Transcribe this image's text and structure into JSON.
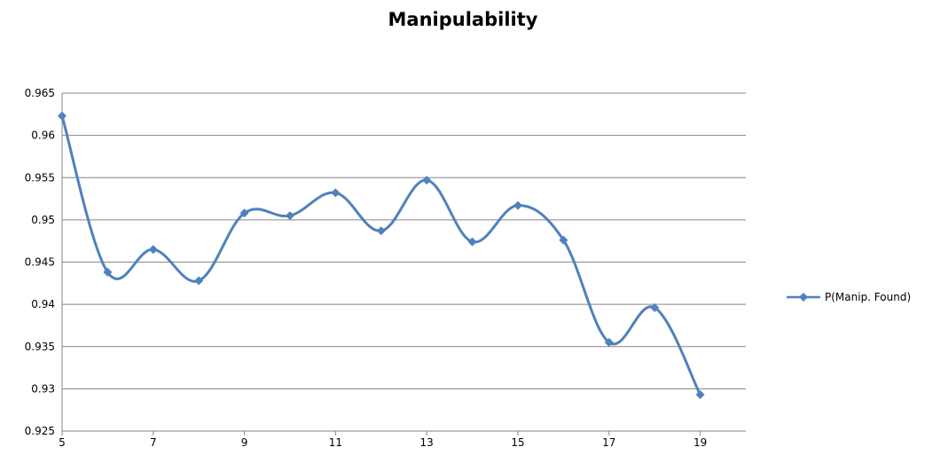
{
  "chart_data": {
    "type": "line",
    "title": "Manipulability",
    "xlabel": "",
    "ylabel": "",
    "x": [
      5,
      6,
      7,
      8,
      9,
      10,
      11,
      12,
      13,
      14,
      15,
      16,
      17,
      18,
      19
    ],
    "series": [
      {
        "name": "P(Manip. Found)",
        "values": [
          0.9623,
          0.9438,
          0.9465,
          0.9428,
          0.9508,
          0.9505,
          0.9532,
          0.9487,
          0.9547,
          0.9474,
          0.9517,
          0.9476,
          0.9355,
          0.9396,
          0.9293
        ],
        "color": "#4f81bd",
        "marker": "diamond",
        "smooth": true
      }
    ],
    "xticks": [
      "5",
      "7",
      "9",
      "11",
      "13",
      "15",
      "17",
      "19"
    ],
    "yticks": [
      "0.925",
      "0.93",
      "0.935",
      "0.94",
      "0.945",
      "0.95",
      "0.955",
      "0.96",
      "0.965"
    ],
    "xlim": [
      5,
      20
    ],
    "ylim": [
      0.925,
      0.965
    ],
    "grid": "horizontal",
    "legend_position": "right"
  }
}
